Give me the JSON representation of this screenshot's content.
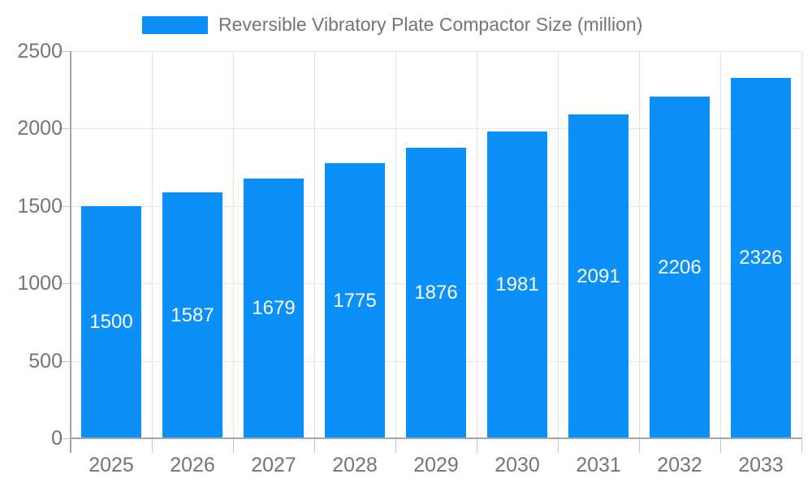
{
  "chart_data": {
    "type": "bar",
    "title": "Reversible Vibratory Plate Compactor Size (million)",
    "categories": [
      "2025",
      "2026",
      "2027",
      "2028",
      "2029",
      "2030",
      "2031",
      "2032",
      "2033"
    ],
    "values": [
      1500,
      1587,
      1679,
      1775,
      1876,
      1981,
      2091,
      2206,
      2326
    ],
    "xlabel": "",
    "ylabel": "",
    "ylim": [
      0,
      2500
    ],
    "yticks": [
      0,
      500,
      1000,
      1500,
      2000,
      2500
    ],
    "grid": true,
    "legend_position": "top",
    "value_labels_inside_bars": true,
    "colors": {
      "bar": "#0a90f8",
      "value_label": "#ffffff",
      "axis_text": "#757575",
      "axis_line": "#a6a6a6",
      "gridline": "#e6e6e6",
      "tick": "#c4c4c4",
      "background": "#ffffff"
    }
  }
}
